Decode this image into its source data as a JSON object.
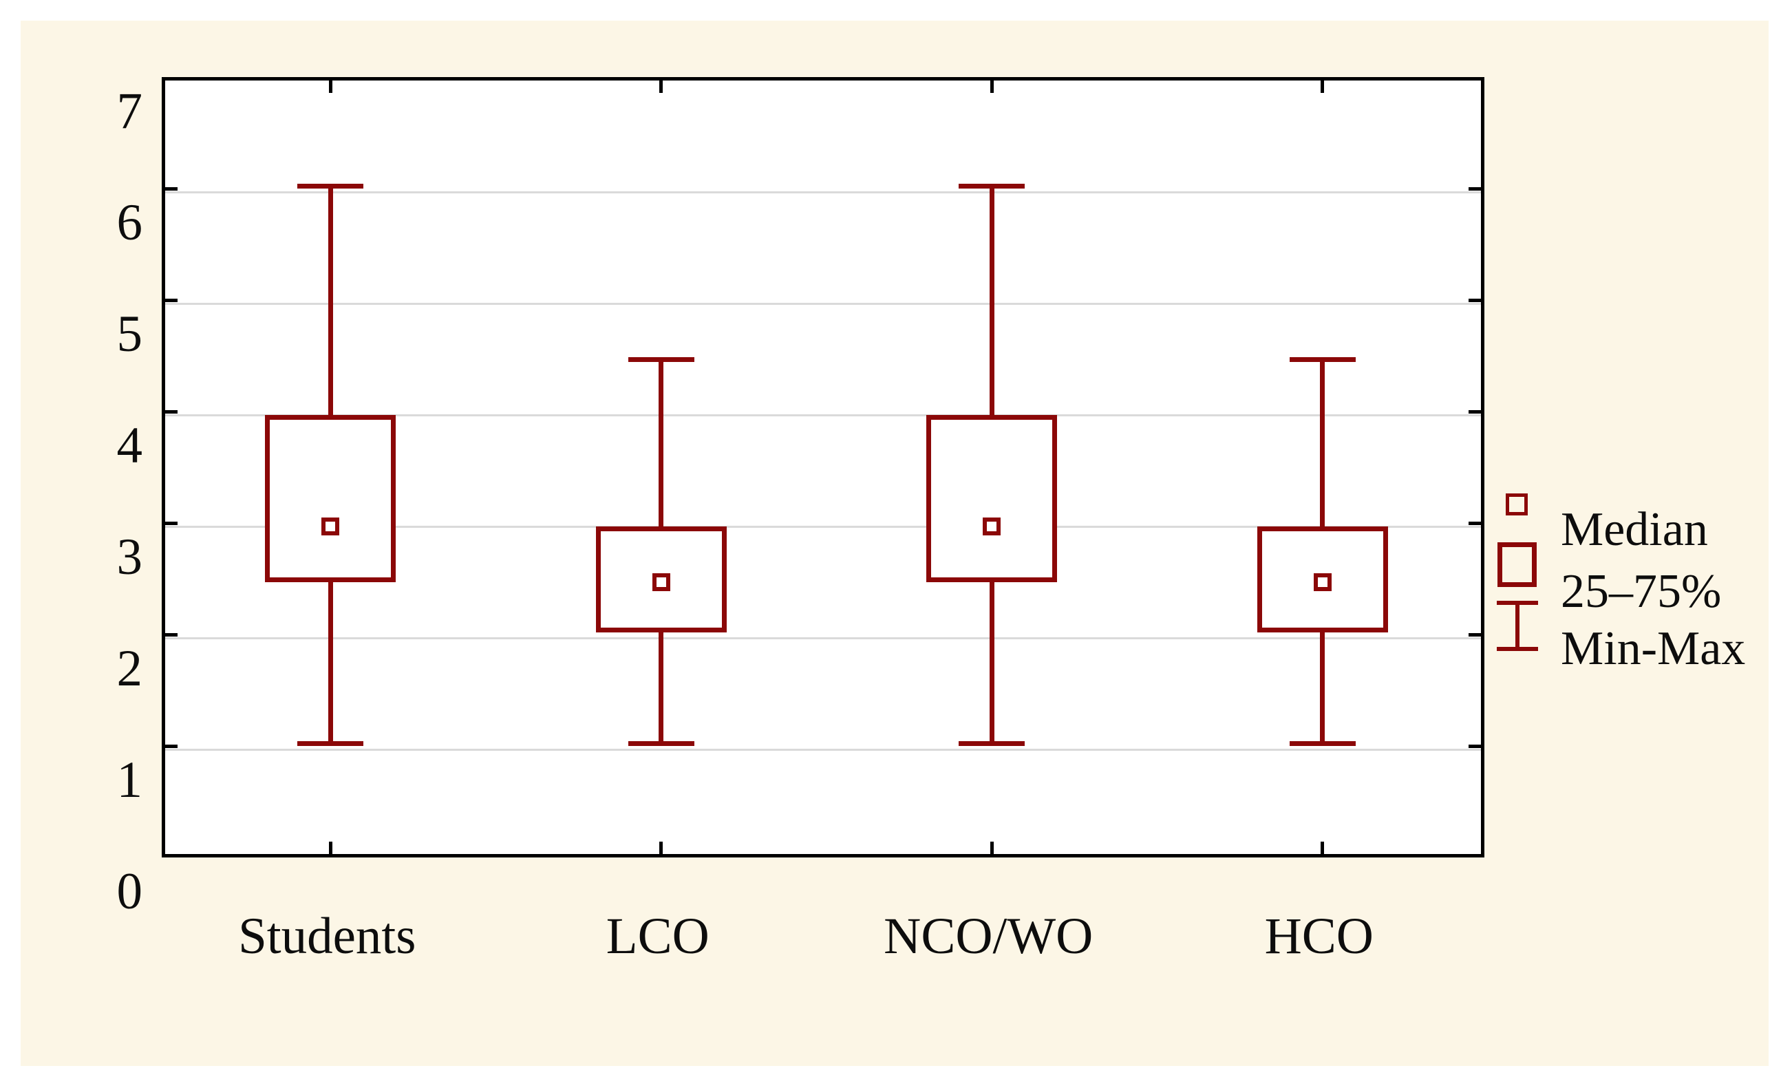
{
  "chart_data": {
    "type": "box",
    "title": "",
    "categories": [
      "Students",
      "LCO",
      "NCO/WO",
      "HCO"
    ],
    "series": [
      {
        "name": "Students",
        "min": 1.05,
        "q1": 2.5,
        "median": 3.0,
        "q3": 4.0,
        "max": 6.05
      },
      {
        "name": "LCO",
        "min": 1.05,
        "q1": 2.05,
        "median": 2.5,
        "q3": 3.0,
        "max": 4.5
      },
      {
        "name": "NCO/WO",
        "min": 1.05,
        "q1": 2.5,
        "median": 3.0,
        "q3": 4.0,
        "max": 6.05
      },
      {
        "name": "HCO",
        "min": 1.05,
        "q1": 2.05,
        "median": 2.5,
        "q3": 3.0,
        "max": 4.5
      }
    ],
    "y_axis": {
      "min": 0,
      "max": 7,
      "tick_step": 1,
      "tick_labels": [
        "0",
        "1",
        "2",
        "3",
        "4",
        "5",
        "6",
        "7"
      ]
    },
    "xlabel": "",
    "ylabel": "",
    "grid": "horizontal gridlines at integers, ticks on all four borders",
    "legend": {
      "position": "right",
      "entries": [
        {
          "marker": "small-square",
          "label": "Median"
        },
        {
          "marker": "box",
          "label": "25–75%"
        },
        {
          "marker": "whisker",
          "label": "Min-Max"
        }
      ]
    },
    "colors": {
      "box_outline": "#8B0808",
      "panel_background": "#FCF6E6",
      "plot_background": "#FFFFFF",
      "gridline": "#DADADA",
      "axis": "#000000",
      "text": "#0D0D0D"
    }
  }
}
